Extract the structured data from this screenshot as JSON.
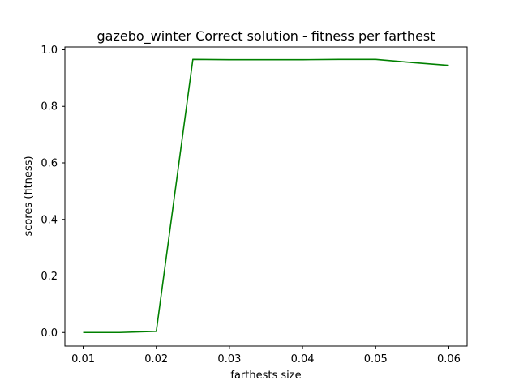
{
  "chart_data": {
    "type": "line",
    "title": "gazebo_winter Correct solution - fitness per farthest",
    "xlabel": "farthests size",
    "ylabel": "scores (fitness)",
    "xlim": [
      0.0075,
      0.0625
    ],
    "ylim": [
      -0.048,
      1.01
    ],
    "x_ticks": [
      0.01,
      0.02,
      0.03,
      0.04,
      0.05,
      0.06
    ],
    "x_tick_labels": [
      "0.01",
      "0.02",
      "0.03",
      "0.04",
      "0.05",
      "0.06"
    ],
    "y_ticks": [
      0.0,
      0.2,
      0.4,
      0.6,
      0.8,
      1.0
    ],
    "y_tick_labels": [
      "0.0",
      "0.2",
      "0.4",
      "0.6",
      "0.8",
      "1.0"
    ],
    "grid": false,
    "series": [
      {
        "color": "#008000",
        "x": [
          0.01,
          0.015,
          0.02,
          0.025,
          0.03,
          0.035,
          0.04,
          0.045,
          0.05,
          0.055,
          0.06
        ],
        "y": [
          0.0,
          0.0,
          0.004,
          0.966,
          0.965,
          0.965,
          0.965,
          0.966,
          0.966,
          0.955,
          0.945
        ]
      }
    ]
  }
}
